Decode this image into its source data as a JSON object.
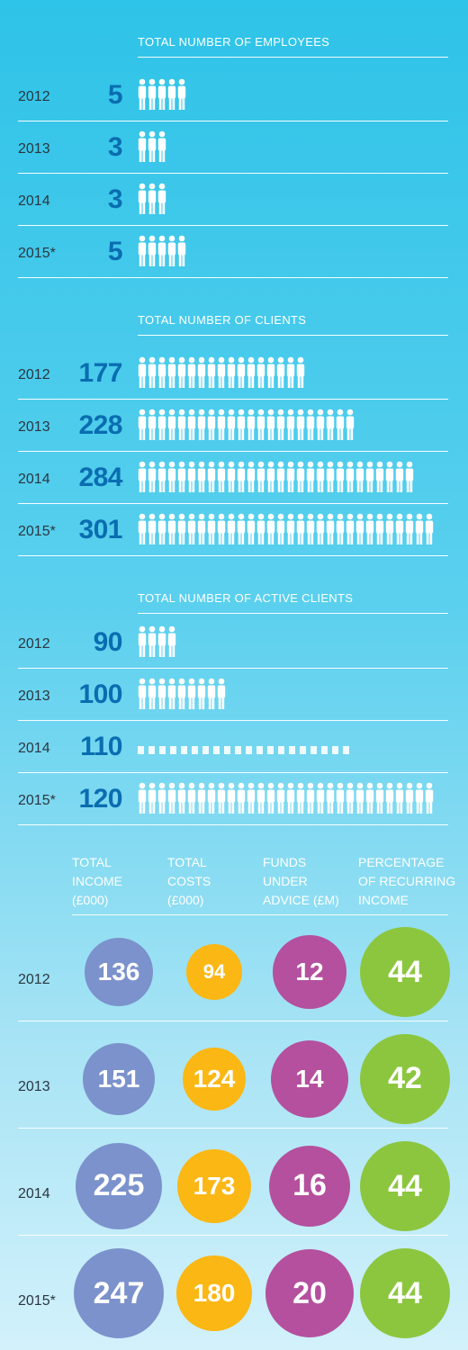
{
  "colors": {
    "dark_blue": "#0a6db0",
    "figure": "#ffffff",
    "income": "#7c92cc",
    "costs": "#fbb714",
    "funds": "#b4509e",
    "recurring": "#8cc63f"
  },
  "employees": {
    "title": "TOTAL NUMBER OF EMPLOYEES",
    "rows": [
      {
        "year": "2012",
        "value": "5",
        "icons": 5
      },
      {
        "year": "2013",
        "value": "3",
        "icons": 3
      },
      {
        "year": "2014",
        "value": "3",
        "icons": 3
      },
      {
        "year": "2015*",
        "value": "5",
        "icons": 5
      }
    ]
  },
  "clients": {
    "title": "TOTAL NUMBER OF CLIENTS",
    "rows": [
      {
        "year": "2012",
        "value": "177",
        "icons": 17
      },
      {
        "year": "2013",
        "value": "228",
        "icons": 22
      },
      {
        "year": "2014",
        "value": "284",
        "icons": 28
      },
      {
        "year": "2015*",
        "value": "301",
        "icons": 30
      }
    ]
  },
  "active": {
    "title": "TOTAL NUMBER OF ACTIVE CLIENTS",
    "rows": [
      {
        "year": "2012",
        "value": "90",
        "icons": 4
      },
      {
        "year": "2013",
        "value": "100",
        "icons": 9
      },
      {
        "year": "2014",
        "value": "110",
        "icons": 20,
        "dim": true
      },
      {
        "year": "2015*",
        "value": "120",
        "icons": 30
      }
    ]
  },
  "finance": {
    "headers": [
      "TOTAL INCOME (£000)",
      "TOTAL COSTS (£000)",
      "FUNDS UNDER ADVICE (£M)",
      "PERCENTAGE OF RECURRING INCOME"
    ],
    "header_lines": [
      [
        "TOTAL",
        "INCOME",
        "(£000)"
      ],
      [
        "TOTAL",
        "COSTS",
        "(£000)"
      ],
      [
        "FUNDS",
        "UNDER",
        "ADVICE (£M)"
      ],
      [
        "PERCENTAGE",
        "OF RECURRING",
        "INCOME"
      ]
    ],
    "rows": [
      {
        "year": "2012",
        "values": [
          "136",
          "94",
          "12",
          "44"
        ]
      },
      {
        "year": "2013",
        "values": [
          "151",
          "124",
          "14",
          "42"
        ]
      },
      {
        "year": "2014",
        "values": [
          "225",
          "173",
          "16",
          "44"
        ]
      },
      {
        "year": "2015*",
        "values": [
          "247",
          "180",
          "20",
          "44"
        ]
      }
    ]
  },
  "chart_data": [
    {
      "type": "table",
      "title": "TOTAL NUMBER OF EMPLOYEES",
      "categories": [
        "2012",
        "2013",
        "2014",
        "2015*"
      ],
      "values": [
        5,
        3,
        3,
        5
      ]
    },
    {
      "type": "table",
      "title": "TOTAL NUMBER OF CLIENTS",
      "categories": [
        "2012",
        "2013",
        "2014",
        "2015*"
      ],
      "values": [
        177,
        228,
        284,
        301
      ]
    },
    {
      "type": "table",
      "title": "TOTAL NUMBER OF ACTIVE CLIENTS",
      "categories": [
        "2012",
        "2013",
        "2014",
        "2015*"
      ],
      "values": [
        90,
        100,
        110,
        120
      ]
    },
    {
      "type": "table",
      "categories": [
        "2012",
        "2013",
        "2014",
        "2015*"
      ],
      "series": [
        {
          "name": "TOTAL INCOME (£000)",
          "values": [
            136,
            151,
            225,
            247
          ]
        },
        {
          "name": "TOTAL COSTS (£000)",
          "values": [
            94,
            124,
            173,
            180
          ]
        },
        {
          "name": "FUNDS UNDER ADVICE (£M)",
          "values": [
            12,
            14,
            16,
            20
          ]
        },
        {
          "name": "PERCENTAGE OF RECURRING INCOME",
          "values": [
            44,
            42,
            44,
            44
          ]
        }
      ]
    }
  ]
}
